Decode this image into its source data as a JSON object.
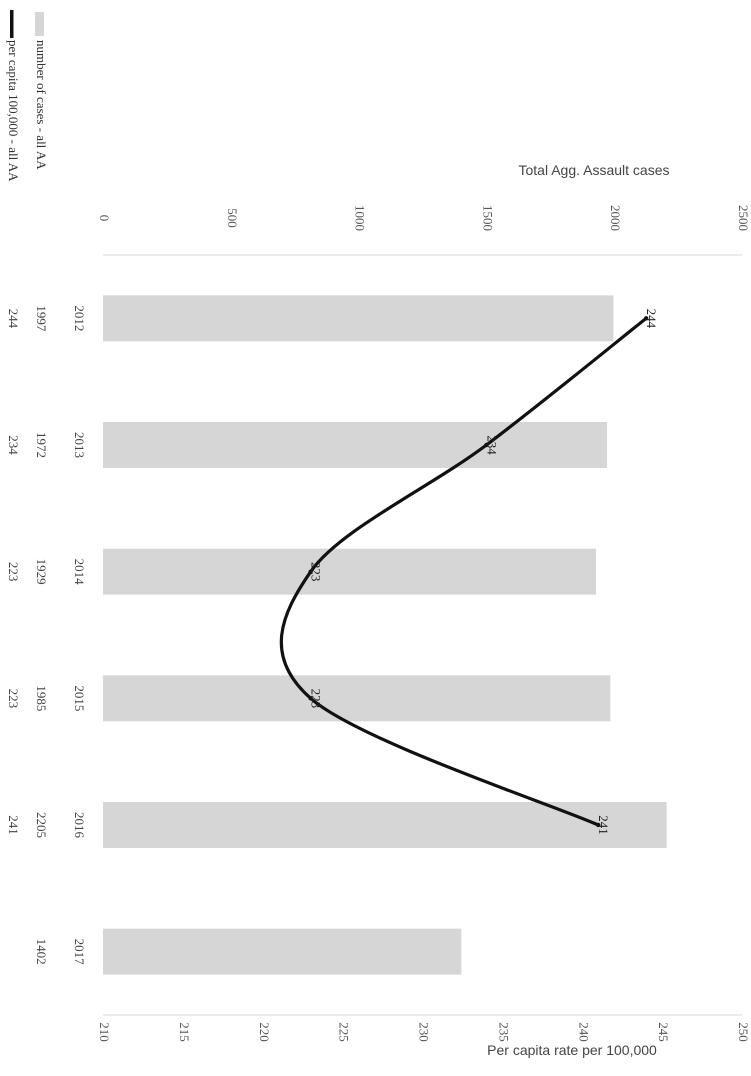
{
  "chart_data": {
    "type": "bar",
    "orientation": "rotated-90-clockwise",
    "categories": [
      "2012",
      "2013",
      "2014",
      "2015",
      "2016",
      "2017"
    ],
    "series": [
      {
        "name": "number of cases - all AA",
        "type": "bar",
        "axis": "primary",
        "values": [
          1997,
          1972,
          1929,
          1985,
          2205,
          1402
        ],
        "color": "#d6d6d6"
      },
      {
        "name": "per capita 100,000 - all AA",
        "type": "line",
        "axis": "secondary",
        "values": [
          244,
          234,
          223,
          223,
          241,
          null
        ],
        "color": "#111111"
      }
    ],
    "point_labels": [
      "244",
      "234",
      "223",
      "223",
      "241"
    ],
    "primary_axis": {
      "label": "Total Agg. Assault cases",
      "range": [
        0,
        2500
      ],
      "ticks": [
        "0",
        "500",
        "1000",
        "1500",
        "2000",
        "2500"
      ]
    },
    "secondary_axis": {
      "label": "Per capita rate per 100,000",
      "range": [
        210,
        250
      ],
      "ticks": [
        "210",
        "215",
        "220",
        "225",
        "230",
        "235",
        "240",
        "245",
        "250"
      ]
    },
    "data_table": {
      "rows": [
        {
          "series": "number of cases - all AA",
          "values": [
            "1997",
            "1972",
            "1929",
            "1985",
            "2205",
            "1402"
          ]
        },
        {
          "series": "per capita 100,000 - all AA",
          "values": [
            "244",
            "234",
            "223",
            "223",
            "241",
            ""
          ]
        }
      ]
    },
    "legend_position": "left",
    "grid": false
  }
}
